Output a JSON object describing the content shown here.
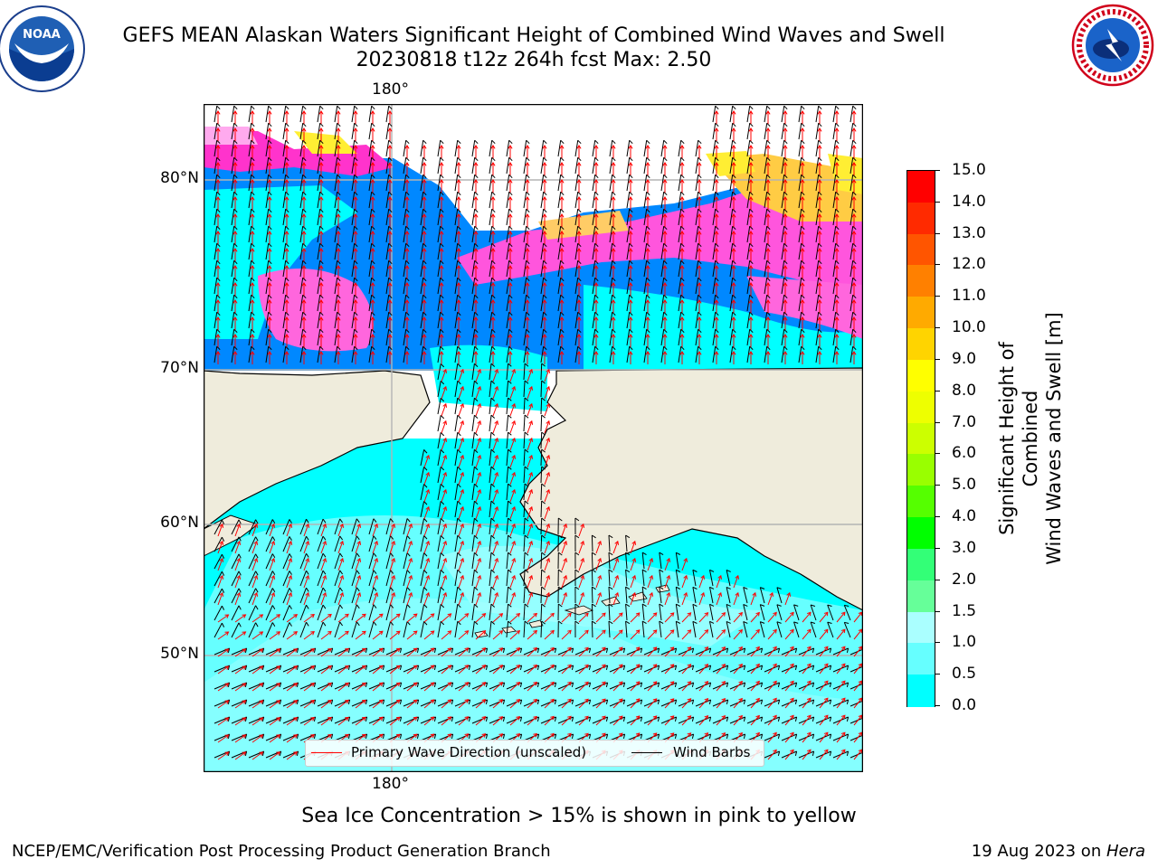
{
  "header": {
    "title_line1": "GEFS MEAN Alaskan Waters Significant Height of Combined Wind Waves and Swell",
    "title_line2": "20230818 t12z 264h fcst   Max: 2.50"
  },
  "logos": {
    "left": {
      "text": "NOAA",
      "icon": "noaa-logo-icon"
    },
    "right": {
      "icon": "nws-logo-icon"
    }
  },
  "map": {
    "lat_labels": [
      "80°N",
      "70°N",
      "60°N",
      "50°N"
    ],
    "lon_label_top": "180°",
    "lon_label_bottom": "180°",
    "legend": {
      "wave_label": "Primary Wave Direction (unscaled)",
      "wave_color": "#ff0000",
      "barb_label": "Wind Barbs",
      "barb_color": "#000000"
    },
    "colors": {
      "land": "#efecdc",
      "grid": "#b4b4b4",
      "wave_low": "#00ffff",
      "wave_mid": "#66ffff",
      "wave_high": "#aaffff",
      "wave_shallow": "#0088ff",
      "ice_pink": "#ff66dd",
      "ice_magenta": "#ff33cc",
      "ice_yellow": "#ffee33",
      "ice_orange": "#ffcc44"
    }
  },
  "colorbar": {
    "title_line1": "Significant Height of Combined",
    "title_line2": "Wind Waves and Swell [m]",
    "ticks": [
      "15.0",
      "14.0",
      "13.0",
      "12.0",
      "11.0",
      "10.0",
      "9.0",
      "8.0",
      "7.0",
      "6.0",
      "5.0",
      "4.0",
      "3.0",
      "2.0",
      "1.5",
      "1.0",
      "0.5",
      "0.0"
    ],
    "colors": [
      "#ff0000",
      "#ff2a00",
      "#ff5500",
      "#ff8000",
      "#ffaa00",
      "#ffd400",
      "#ffff00",
      "#eeff00",
      "#ccff00",
      "#99ff00",
      "#55ff00",
      "#00ff00",
      "#33ff77",
      "#66ff99",
      "#aaffff",
      "#66ffff",
      "#00ffff",
      "#0080ff",
      "#0000ff"
    ]
  },
  "footer": {
    "ice_note": "Sea Ice Concentration > 15% is shown in pink to yellow",
    "credit": "NCEP/EMC/Verification Post Processing Product Generation Branch",
    "date_text": "19 Aug 2023 on ",
    "host": "Hera"
  }
}
